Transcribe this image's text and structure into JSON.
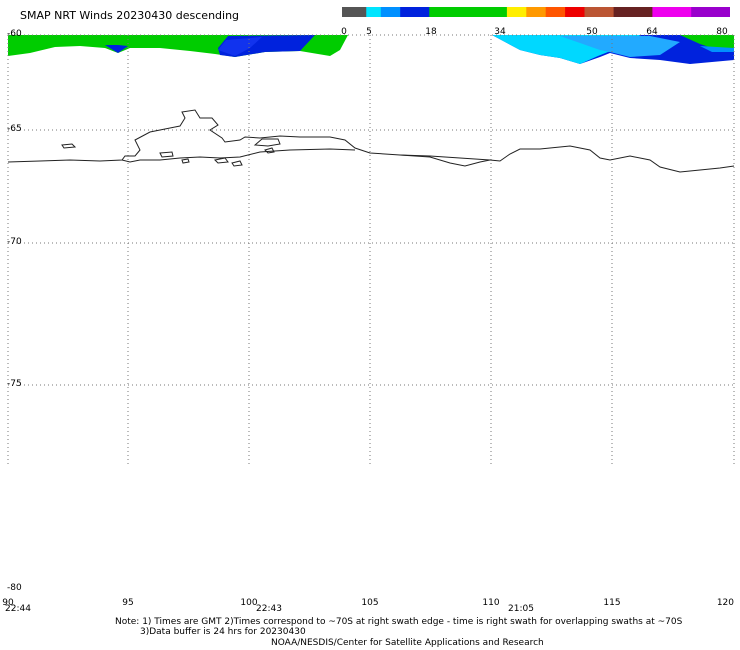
{
  "header": {
    "title": "SMAP NRT Winds  20230430 descending"
  },
  "colorbar": {
    "labels": [
      "0",
      "5",
      "18",
      "34",
      "50",
      "64",
      "80"
    ],
    "segments": [
      {
        "from": 0,
        "to": 5,
        "color": "#555555"
      },
      {
        "from": 5,
        "to": 8,
        "color": "#00e5ff"
      },
      {
        "from": 8,
        "to": 12,
        "color": "#0090ff"
      },
      {
        "from": 12,
        "to": 18,
        "color": "#0022dd"
      },
      {
        "from": 18,
        "to": 34,
        "color": "#00cc00"
      },
      {
        "from": 34,
        "to": 38,
        "color": "#ffee00"
      },
      {
        "from": 38,
        "to": 42,
        "color": "#ff9900"
      },
      {
        "from": 42,
        "to": 46,
        "color": "#ff5500"
      },
      {
        "from": 46,
        "to": 50,
        "color": "#ee0000"
      },
      {
        "from": 50,
        "to": 56,
        "color": "#bb5533"
      },
      {
        "from": 56,
        "to": 64,
        "color": "#662222"
      },
      {
        "from": 64,
        "to": 72,
        "color": "#ee00ee"
      },
      {
        "from": 72,
        "to": 80,
        "color": "#9900cc"
      }
    ]
  },
  "map": {
    "lat_range": [
      -80,
      -60
    ],
    "lon_range": [
      90,
      120
    ],
    "lat_labels": [
      "-60",
      "-65",
      "-70",
      "-75",
      "-80"
    ],
    "lon_labels": [
      "90",
      "95",
      "100",
      "105",
      "110",
      "115",
      "120"
    ],
    "swath_times": [
      "22:44",
      "22:43",
      "21:05"
    ]
  },
  "notes": {
    "line1": "Note: 1) Times are GMT 2)Times correspond to ~70S at right swath edge - time is right swath for overlapping swaths at ~70S",
    "line2": "3)Data buffer is 24 hrs for 20230430",
    "line3": "NOAA/NESDIS/Center for Satellite Applications and Research"
  }
}
